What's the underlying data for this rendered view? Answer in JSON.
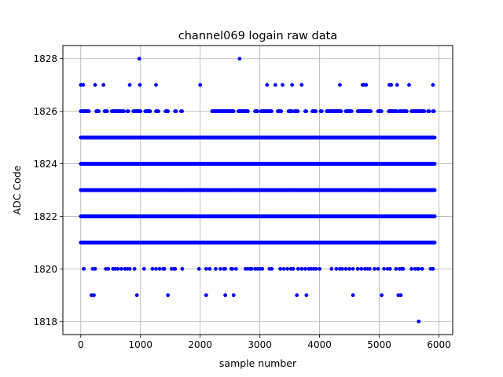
{
  "chart_data": {
    "type": "scatter",
    "title": "channel069 logain raw data",
    "xlabel": "sample number",
    "ylabel": "ADC Code",
    "xlim": [
      -300,
      6230
    ],
    "ylim": [
      1817.5,
      1828.5
    ],
    "x_ticks": [
      0,
      1000,
      2000,
      3000,
      4000,
      5000,
      6000
    ],
    "y_ticks": [
      1818,
      1820,
      1822,
      1824,
      1826,
      1828
    ],
    "grid": true,
    "legend": "none",
    "marker_color": "#0000ff",
    "x_range": [
      0,
      5930
    ],
    "series": [
      {
        "values_by_level": [
          {
            "y": 1828,
            "x": [
              980,
              2660
            ]
          },
          {
            "y": 1827,
            "x": [
              0,
              40,
              240,
              380,
              820,
              990,
              1260,
              2000,
              3120,
              3260,
              3380,
              3540,
              3700,
              4340,
              4720,
              4740,
              4780,
              5170,
              5200,
              5300,
              5500,
              5900
            ]
          },
          {
            "y": 1826,
            "band": [
              [
                0,
                140
              ],
              [
                260,
                300
              ],
              [
                400,
                440
              ],
              [
                520,
                720
              ],
              [
                780,
                800
              ],
              [
                880,
                1000
              ],
              [
                1080,
                1160
              ],
              [
                1260,
                1300
              ],
              [
                1420,
                1460
              ],
              [
                1580,
                1600
              ],
              [
                1680,
                1700
              ],
              [
                2200,
                2560
              ],
              [
                2640,
                2800
              ],
              [
                2920,
                2960
              ],
              [
                3020,
                3200
              ],
              [
                3300,
                3360
              ],
              [
                3480,
                3540
              ],
              [
                3580,
                3640
              ],
              [
                3760,
                3780
              ],
              [
                3880,
                3940
              ],
              [
                4020,
                4040
              ],
              [
                4120,
                4360
              ],
              [
                4440,
                4540
              ],
              [
                4640,
                4860
              ],
              [
                4980,
                5040
              ],
              [
                5160,
                5300
              ],
              [
                5340,
                5460
              ],
              [
                5540,
                5760
              ],
              [
                5820,
                5840
              ],
              [
                5900,
                5920
              ]
            ]
          },
          {
            "y": 1825,
            "band": [
              [
                0,
                5930
              ]
            ]
          },
          {
            "y": 1824,
            "band": [
              [
                0,
                5930
              ]
            ]
          },
          {
            "y": 1823,
            "band": [
              [
                0,
                5930
              ]
            ]
          },
          {
            "y": 1822,
            "band": [
              [
                0,
                5930
              ]
            ]
          },
          {
            "y": 1821,
            "band": [
              [
                0,
                5930
              ]
            ]
          },
          {
            "y": 1820,
            "x": [
              50,
              200,
              240,
              420,
              460,
              540,
              580,
              620,
              680,
              740,
              780,
              820,
              900,
              1060,
              1200,
              1260,
              1320,
              1380,
              1400,
              1520,
              1560,
              1580,
              1700,
              1980,
              2100,
              2160,
              2260,
              2340,
              2400,
              2420,
              2520,
              2540,
              2600,
              2760,
              2800,
              2840,
              2860,
              2920,
              2960,
              3000,
              3040,
              3160,
              3200,
              3340,
              3400,
              3460,
              3520,
              3560,
              3640,
              3700,
              3760,
              3820,
              3860,
              3900,
              3940,
              4000,
              4200,
              4280,
              4340,
              4380,
              4440,
              4500,
              4560,
              4640,
              4700,
              4760,
              4800,
              4840,
              4920,
              4980,
              5080,
              5140,
              5180,
              5280,
              5340,
              5380,
              5400,
              5540,
              5600,
              5640,
              5660,
              5720,
              5860,
              5900
            ]
          },
          {
            "y": 1819,
            "x": [
              180,
              220,
              940,
              1460,
              2100,
              2420,
              2560,
              3620,
              3780,
              4560,
              5040,
              5320,
              5360
            ]
          },
          {
            "y": 1818,
            "x": [
              5660
            ]
          }
        ]
      }
    ]
  }
}
